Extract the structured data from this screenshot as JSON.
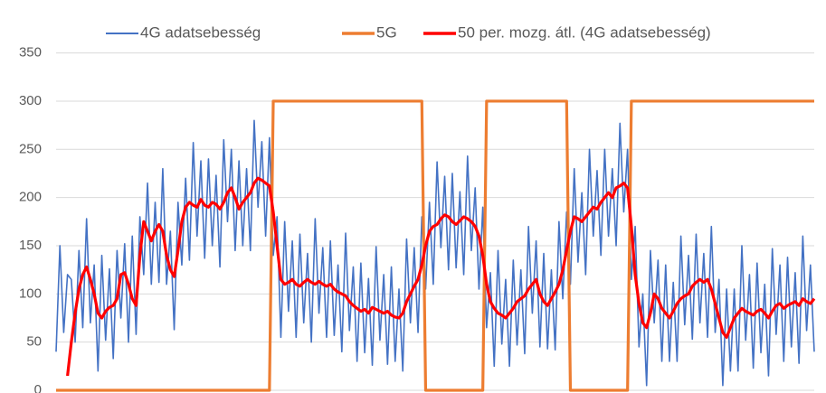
{
  "chart_data": {
    "type": "line",
    "legend": "top",
    "grid": true,
    "ylim": [
      0,
      350
    ],
    "yticks": [
      0,
      50,
      100,
      150,
      200,
      250,
      300,
      350
    ],
    "series": [
      {
        "name": "4G adatsebesség",
        "color": "#4472c4",
        "values": [
          40,
          150,
          60,
          120,
          115,
          50,
          145,
          65,
          178,
          70,
          130,
          20,
          140,
          52,
          126,
          33,
          145,
          75,
          152,
          50,
          160,
          58,
          180,
          120,
          215,
          110,
          195,
          112,
          230,
          110,
          165,
          63,
          195,
          130,
          220,
          135,
          257,
          160,
          238,
          137,
          240,
          150,
          223,
          128,
          260,
          175,
          250,
          145,
          238,
          150,
          230,
          145,
          280,
          190,
          258,
          160,
          262,
          140,
          180,
          55,
          175,
          82,
          155,
          55,
          162,
          70,
          142,
          50,
          178,
          80,
          148,
          55,
          155,
          57,
          130,
          40,
          163,
          62,
          128,
          30,
          132,
          39,
          116,
          26,
          149,
          52,
          120,
          27,
          128,
          30,
          105,
          20,
          157,
          70,
          148,
          60,
          180,
          105,
          195,
          110,
          237,
          148,
          222,
          125,
          225,
          127,
          206,
          120,
          243,
          145,
          210,
          105,
          190,
          65,
          122,
          25,
          145,
          48,
          115,
          25,
          135,
          47,
          125,
          38,
          170,
          80,
          155,
          45,
          142,
          43,
          125,
          42,
          175,
          95,
          185,
          110,
          230,
          133,
          205,
          120,
          250,
          160,
          228,
          140,
          250,
          160,
          230,
          150,
          277,
          185,
          250,
          115,
          170,
          45,
          100,
          5,
          145,
          70,
          135,
          30,
          130,
          30,
          112,
          30,
          160,
          68,
          140,
          53,
          162,
          70,
          142,
          55,
          170,
          60,
          115,
          5,
          105,
          20,
          105,
          20,
          150,
          52,
          120,
          23,
          132,
          39,
          110,
          15,
          147,
          58,
          130,
          30,
          138,
          45,
          122,
          28,
          160,
          62,
          130,
          40
        ]
      },
      {
        "name": "5G",
        "color": "#ed7d31",
        "values": [
          0,
          0,
          0,
          0,
          0,
          0,
          0,
          0,
          0,
          0,
          0,
          0,
          0,
          0,
          0,
          0,
          0,
          0,
          0,
          0,
          0,
          0,
          0,
          0,
          0,
          0,
          0,
          0,
          0,
          0,
          0,
          0,
          0,
          0,
          0,
          0,
          0,
          0,
          0,
          0,
          0,
          0,
          0,
          0,
          0,
          0,
          0,
          0,
          0,
          0,
          0,
          0,
          0,
          0,
          0,
          0,
          0,
          300,
          300,
          300,
          300,
          300,
          300,
          300,
          300,
          300,
          300,
          300,
          300,
          300,
          300,
          300,
          300,
          300,
          300,
          300,
          300,
          300,
          300,
          300,
          300,
          300,
          300,
          300,
          300,
          300,
          300,
          300,
          300,
          300,
          300,
          300,
          300,
          300,
          300,
          300,
          300,
          0,
          0,
          0,
          0,
          0,
          0,
          0,
          0,
          0,
          0,
          0,
          0,
          0,
          0,
          0,
          0,
          300,
          300,
          300,
          300,
          300,
          300,
          300,
          300,
          300,
          300,
          300,
          300,
          300,
          300,
          300,
          300,
          300,
          300,
          300,
          300,
          300,
          300,
          0,
          0,
          0,
          0,
          0,
          0,
          0,
          0,
          0,
          0,
          0,
          0,
          0,
          0,
          0,
          0,
          300,
          300,
          300,
          300,
          300,
          300,
          300,
          300,
          300,
          300,
          300,
          300,
          300,
          300,
          300,
          300,
          300,
          300,
          300,
          300,
          300,
          300,
          300,
          300,
          300,
          300,
          300,
          300,
          300,
          300,
          300,
          300,
          300,
          300,
          300,
          300,
          300,
          300,
          300,
          300,
          300,
          300,
          300,
          300,
          300,
          300,
          300,
          300,
          300
        ]
      },
      {
        "name": "50 per. mozg. átl. (4G adatsebesség)",
        "color": "#ff0000",
        "values": [
          null,
          null,
          null,
          15,
          50,
          80,
          105,
          120,
          128,
          115,
          100,
          80,
          75,
          82,
          86,
          88,
          95,
          120,
          122,
          110,
          95,
          88,
          140,
          175,
          165,
          155,
          165,
          172,
          165,
          140,
          125,
          118,
          145,
          175,
          190,
          195,
          192,
          190,
          198,
          192,
          190,
          195,
          193,
          188,
          195,
          205,
          210,
          200,
          188,
          195,
          200,
          205,
          215,
          220,
          218,
          215,
          212,
          185,
          150,
          115,
          110,
          112,
          115,
          110,
          108,
          112,
          115,
          112,
          110,
          113,
          110,
          108,
          110,
          105,
          102,
          100,
          98,
          92,
          88,
          85,
          82,
          84,
          80,
          86,
          84,
          82,
          80,
          82,
          78,
          76,
          75,
          80,
          92,
          100,
          108,
          115,
          130,
          150,
          165,
          170,
          172,
          178,
          182,
          180,
          175,
          172,
          176,
          180,
          178,
          175,
          170,
          160,
          140,
          110,
          92,
          85,
          80,
          78,
          75,
          80,
          85,
          92,
          95,
          98,
          105,
          110,
          115,
          100,
          92,
          88,
          95,
          102,
          110,
          125,
          145,
          165,
          180,
          178,
          175,
          180,
          185,
          190,
          188,
          195,
          200,
          205,
          200,
          210,
          212,
          215,
          210,
          170,
          120,
          90,
          70,
          65,
          80,
          100,
          95,
          85,
          80,
          75,
          82,
          90,
          95,
          98,
          100,
          108,
          112,
          115,
          112,
          115,
          105,
          90,
          75,
          60,
          55,
          65,
          75,
          80,
          85,
          82,
          80,
          78,
          82,
          84,
          80,
          75,
          82,
          88,
          90,
          85,
          88,
          90,
          92,
          88,
          95,
          92,
          90,
          95
        ]
      }
    ]
  }
}
